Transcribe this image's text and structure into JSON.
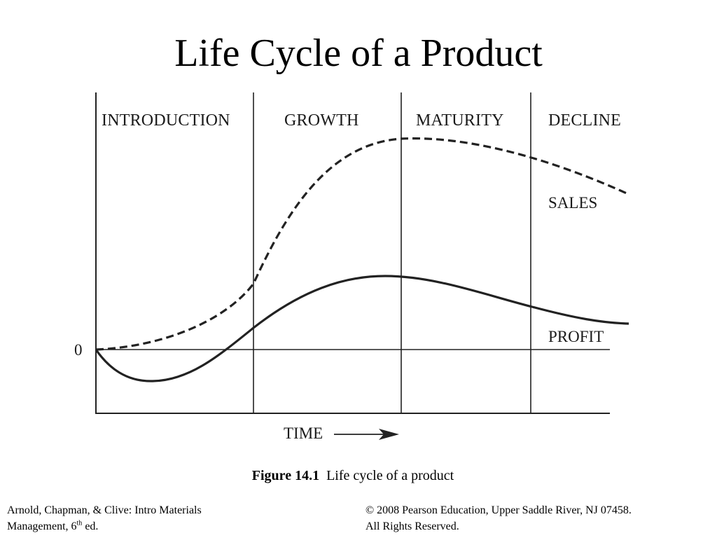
{
  "title": "Life Cycle of a Product",
  "diagram": {
    "stages": [
      "INTRODUCTION",
      "GROWTH",
      "MATURITY",
      "DECLINE"
    ],
    "zero_label": "0",
    "x_axis_label": "TIME",
    "curves": {
      "sales_label": "SALES",
      "profit_label": "PROFIT"
    },
    "line_color": "#222222"
  },
  "caption": {
    "figure_number": "Figure 14.1",
    "text": "Life cycle of a product"
  },
  "footer": {
    "left_line1": "Arnold, Chapman, & Clive: Intro Materials",
    "left_line2_prefix": "Management, 6",
    "left_line2_sup": "th",
    "left_line2_suffix": " ed.",
    "right_line1": "© 2008 Pearson Education, Upper Saddle River, NJ 07458.",
    "right_line2": "All Rights Reserved."
  }
}
